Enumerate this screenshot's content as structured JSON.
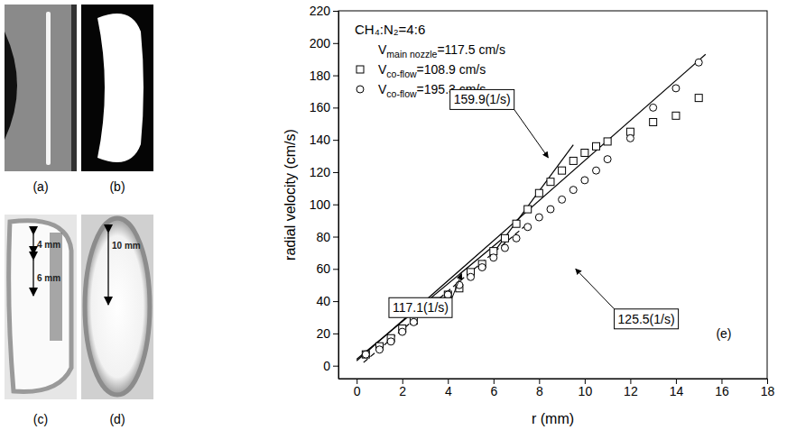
{
  "images": [
    {
      "label": "(a)"
    },
    {
      "label": "(b)"
    },
    {
      "label": "(c)",
      "annotations": [
        "4 mm",
        "6 mm"
      ]
    },
    {
      "label": "(d)",
      "annotations": [
        "10 mm"
      ]
    }
  ],
  "chart_data": {
    "type": "scatter",
    "title": "CH₄:N₂=4:6",
    "note": "Vmain nozzle=117.5 cm/s",
    "panel_label": "(e)",
    "x_label": "r  (mm)",
    "y_label": "radial velocity (cm/s)",
    "xlim": [
      -0.8,
      18
    ],
    "ylim": [
      -8,
      220
    ],
    "xticks": [
      0,
      2,
      4,
      6,
      8,
      10,
      12,
      14,
      16,
      18
    ],
    "yticks": [
      0,
      20,
      40,
      60,
      80,
      100,
      120,
      140,
      160,
      180,
      200,
      220
    ],
    "legend": "top-left",
    "series": [
      {
        "name": "Vco-flow=108.9 cm/s",
        "marker": "square",
        "color": "#000000",
        "x": [
          0.4,
          1,
          1.5,
          2,
          2.5,
          3,
          3.5,
          4,
          4.5,
          5,
          5.5,
          6,
          6.5,
          7,
          7.5,
          8,
          8.5,
          9,
          9.5,
          10,
          10.5,
          11,
          12,
          13,
          14,
          15
        ],
        "values": [
          7,
          12,
          17,
          23,
          28,
          34,
          40,
          44,
          48,
          58,
          63,
          71,
          79,
          88,
          97,
          107,
          114,
          121,
          127,
          132,
          136,
          139,
          145,
          151,
          155,
          166
        ]
      },
      {
        "name": "Vco-flow=195.3 cm/s",
        "marker": "circle",
        "color": "#000000",
        "x": [
          0.4,
          1,
          1.5,
          2,
          2.5,
          3,
          3.5,
          4,
          4.5,
          5,
          5.5,
          6,
          6.5,
          7,
          7.5,
          8,
          8.5,
          9,
          9.5,
          10,
          10.5,
          11,
          12,
          13,
          14,
          15
        ],
        "values": [
          7,
          10,
          15,
          21,
          27,
          33,
          39,
          44,
          50,
          55,
          61,
          67,
          73,
          79,
          86,
          92,
          97,
          103,
          109,
          115,
          121,
          128,
          141,
          160,
          172,
          188
        ]
      }
    ],
    "fit_lines": [
      {
        "x": [
          0,
          6.5
        ],
        "values": [
          4,
          80
        ],
        "line_style": "solid"
      },
      {
        "x": [
          0,
          15.3
        ],
        "values": [
          3,
          193
        ],
        "line_style": "solid"
      },
      {
        "x": [
          6,
          9.5
        ],
        "values": [
          70,
          137
        ],
        "line_style": "solid"
      },
      {
        "x": [
          0.3,
          7.5
        ],
        "values": [
          2,
          88
        ],
        "line_style": "dashed"
      }
    ],
    "annotations": [
      {
        "text": "159.9(1/s)",
        "x": 5.5,
        "y": 165,
        "arrow_to": [
          8.4,
          129
        ]
      },
      {
        "text": "117.1(1/s)",
        "x": 2.8,
        "y": 36,
        "arrow_to": [
          4.6,
          57
        ]
      },
      {
        "text": "125.5(1/s)",
        "x": 12.7,
        "y": 29,
        "arrow_to": [
          9.6,
          60
        ]
      }
    ]
  }
}
